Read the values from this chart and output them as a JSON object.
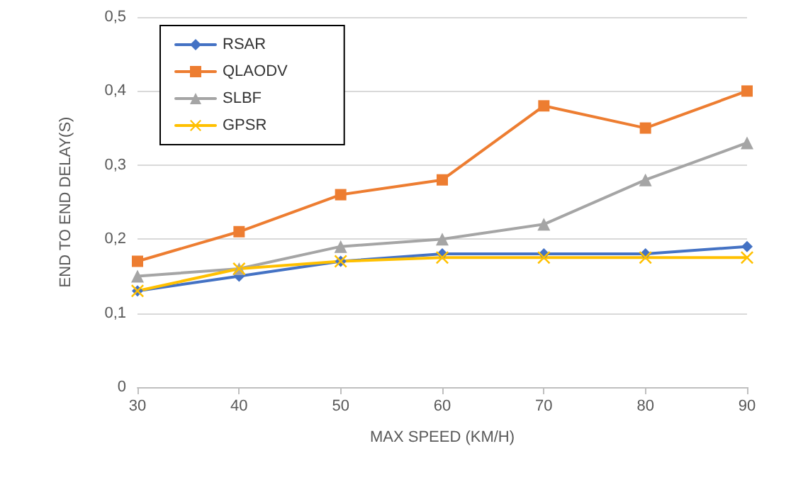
{
  "chart_data": {
    "type": "line",
    "xlabel": "MAX SPEED (KM/H)",
    "ylabel": "END TO END DELAY(S)",
    "x": [
      30,
      40,
      50,
      60,
      70,
      80,
      90
    ],
    "series": [
      {
        "name": "RSAR",
        "color": "#4472c4",
        "marker": "diamond",
        "values": [
          0.13,
          0.15,
          0.17,
          0.18,
          0.18,
          0.18,
          0.19
        ]
      },
      {
        "name": "QLAODV",
        "color": "#ed7d31",
        "marker": "square",
        "values": [
          0.17,
          0.21,
          0.26,
          0.28,
          0.38,
          0.35,
          0.4
        ]
      },
      {
        "name": "SLBF",
        "color": "#a5a5a5",
        "marker": "triangle",
        "values": [
          0.15,
          0.16,
          0.19,
          0.2,
          0.22,
          0.28,
          0.33
        ]
      },
      {
        "name": "GPSR",
        "color": "#ffc000",
        "marker": "cross",
        "values": [
          0.13,
          0.16,
          0.17,
          0.175,
          0.175,
          0.175,
          0.175
        ]
      }
    ],
    "xlim": [
      30,
      90
    ],
    "xticks": [
      30,
      40,
      50,
      60,
      70,
      80,
      90
    ],
    "ylim": [
      0,
      0.5
    ],
    "yticks": [
      0,
      {
        "value": 0.1,
        "label": "0,1"
      },
      {
        "value": 0.2,
        "label": "0,2"
      },
      {
        "value": 0.3,
        "label": "0,3"
      },
      {
        "value": 0.4,
        "label": "0,4"
      },
      {
        "value": 0.5,
        "label": "0,5"
      }
    ],
    "grid": "y",
    "legend": "top left",
    "line_style": "solid"
  }
}
